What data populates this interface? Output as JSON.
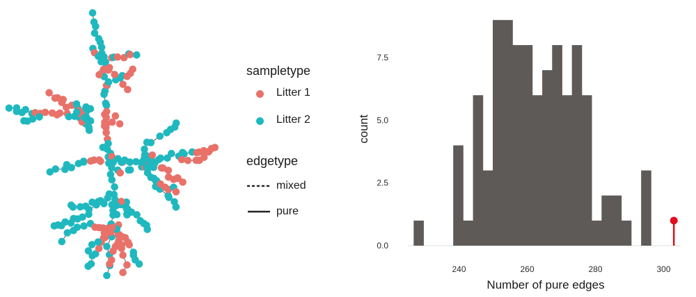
{
  "colors": {
    "litter1": "#E8726A",
    "litter2": "#20B8BF",
    "bar": "#5E5A57",
    "observed": "#E0101E",
    "axis_text": "#2b2b2b",
    "edge": "#333333"
  },
  "legend": {
    "sampletype": {
      "title": "sampletype",
      "items": [
        {
          "label": "Litter 1",
          "color": "#E8726A"
        },
        {
          "label": "Litter 2",
          "color": "#20B8BF"
        }
      ]
    },
    "edgetype": {
      "title": "edgetype",
      "items": [
        {
          "label": "mixed",
          "linestyle": "dotted"
        },
        {
          "label": "pure",
          "linestyle": "solid"
        }
      ]
    }
  },
  "chart_data": [
    {
      "type": "network",
      "node_colors_by": "sampletype",
      "edge_style_by": "edgetype",
      "series": [
        {
          "name": "Litter 1",
          "color": "#E8726A"
        },
        {
          "name": "Litter 2",
          "color": "#20B8BF"
        }
      ]
    },
    {
      "type": "bar",
      "subtype": "histogram",
      "xlabel": "Number of pure edges",
      "ylabel": "count",
      "xlim": [
        225,
        305
      ],
      "ylim": [
        0,
        9.3
      ],
      "xticks": [
        "240",
        "260",
        "280",
        "300"
      ],
      "yticks": [
        "0.0",
        "2.5",
        "5.0",
        "7.5"
      ],
      "xtick_values": [
        240,
        260,
        280,
        300
      ],
      "ytick_values": [
        0,
        2.5,
        5,
        7.5
      ],
      "bin_width": 2.9,
      "bins": [
        {
          "x0": 226.7,
          "count": 1
        },
        {
          "x0": 229.6,
          "count": 0
        },
        {
          "x0": 232.5,
          "count": 0
        },
        {
          "x0": 235.4,
          "count": 0
        },
        {
          "x0": 238.3,
          "count": 4
        },
        {
          "x0": 241.2,
          "count": 1
        },
        {
          "x0": 244.1,
          "count": 6
        },
        {
          "x0": 247.0,
          "count": 3
        },
        {
          "x0": 249.9,
          "count": 9
        },
        {
          "x0": 252.8,
          "count": 9
        },
        {
          "x0": 255.7,
          "count": 8
        },
        {
          "x0": 258.6,
          "count": 8
        },
        {
          "x0": 261.5,
          "count": 6
        },
        {
          "x0": 264.4,
          "count": 7
        },
        {
          "x0": 267.3,
          "count": 8
        },
        {
          "x0": 270.2,
          "count": 6
        },
        {
          "x0": 273.1,
          "count": 8
        },
        {
          "x0": 276.0,
          "count": 6
        },
        {
          "x0": 278.9,
          "count": 1
        },
        {
          "x0": 281.8,
          "count": 2
        },
        {
          "x0": 284.7,
          "count": 2
        },
        {
          "x0": 287.6,
          "count": 1
        },
        {
          "x0": 290.5,
          "count": 0
        },
        {
          "x0": 293.4,
          "count": 3
        },
        {
          "x0": 296.3,
          "count": 0
        }
      ],
      "observed": {
        "x": 303,
        "value": 1
      }
    }
  ]
}
